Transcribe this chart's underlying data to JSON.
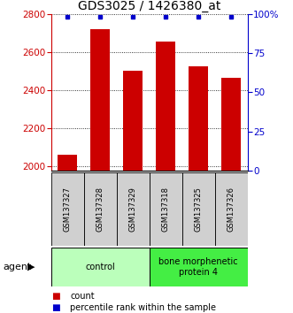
{
  "title": "GDS3025 / 1426380_at",
  "samples": [
    "GSM137327",
    "GSM137328",
    "GSM137329",
    "GSM137318",
    "GSM137325",
    "GSM137326"
  ],
  "counts": [
    2058,
    2720,
    2500,
    2655,
    2525,
    2465
  ],
  "percentiles": [
    98,
    98,
    98,
    98,
    98,
    98
  ],
  "ylim_left": [
    1975,
    2800
  ],
  "ylim_right": [
    0,
    100
  ],
  "yticks_left": [
    2000,
    2200,
    2400,
    2600,
    2800
  ],
  "yticks_right": [
    0,
    25,
    50,
    75,
    100
  ],
  "bar_color": "#cc0000",
  "dot_color": "#0000cc",
  "bar_width": 0.6,
  "groups": [
    {
      "label": "control",
      "n": 3,
      "color": "#bbffbb"
    },
    {
      "label": "bone morphenetic\nprotein 4",
      "n": 3,
      "color": "#44ee44"
    }
  ],
  "legend_items": [
    {
      "label": "count",
      "color": "#cc0000"
    },
    {
      "label": "percentile rank within the sample",
      "color": "#0000cc"
    }
  ],
  "background_color": "#ffffff",
  "left_axis_color": "#cc0000",
  "right_axis_color": "#0000cc",
  "title_fontsize": 10,
  "tick_fontsize": 7.5,
  "sample_fontsize": 6,
  "group_fontsize": 7,
  "legend_fontsize": 7
}
